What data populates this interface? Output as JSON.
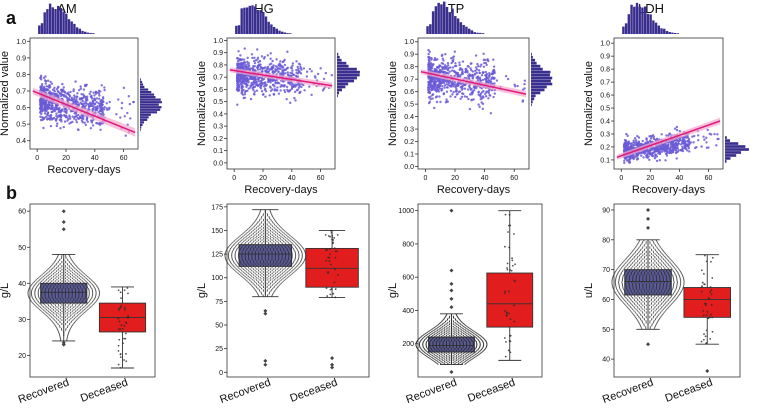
{
  "panel_labels": {
    "a": "a",
    "b": "b"
  },
  "colors": {
    "scatter": "#6b5bd6",
    "hist": "#3a2f8f",
    "reg_line": "#e0197a",
    "reg_band": "#f4a6cc",
    "box_recovered": "#5a5a96",
    "box_deceased": "#e11d1d",
    "swarm": "#2a2a2a"
  },
  "chart_data": [
    {
      "type": "scatter",
      "title": "AM",
      "xlabel": "Recovery-days",
      "ylabel": "Normalized value",
      "xlim": [
        -5,
        70
      ],
      "ylim": [
        0.35,
        1.02
      ],
      "xticks": [
        0,
        20,
        40,
        60
      ],
      "yticks": [
        0.4,
        0.5,
        0.6,
        0.7,
        0.8,
        0.9,
        1.0
      ],
      "cluster": {
        "x_mean": 12,
        "y_mean": 0.62,
        "y_sd": 0.06,
        "n": 1000
      },
      "regression": {
        "x": [
          -3,
          68
        ],
        "y": [
          0.7,
          0.45
        ]
      },
      "marginal_y_mean": 0.62
    },
    {
      "type": "scatter",
      "title": "HG",
      "xlabel": "Recovery-days",
      "ylabel": "Normalized value",
      "xlim": [
        -5,
        70
      ],
      "ylim": [
        -0.05,
        1.02
      ],
      "xticks": [
        0,
        20,
        40,
        60
      ],
      "yticks": [
        0.0,
        0.1,
        0.2,
        0.3,
        0.4,
        0.5,
        0.6,
        0.7,
        0.8,
        0.9,
        1.0
      ],
      "cluster": {
        "x_mean": 12,
        "y_mean": 0.71,
        "y_sd": 0.07,
        "n": 1000
      },
      "regression": {
        "x": [
          -3,
          68
        ],
        "y": [
          0.76,
          0.63
        ]
      },
      "marginal_y_mean": 0.72
    },
    {
      "type": "scatter",
      "title": "TP",
      "xlabel": "Recovery-days",
      "ylabel": "Normalized value",
      "xlim": [
        -5,
        70
      ],
      "ylim": [
        -0.02,
        1.03
      ],
      "xticks": [
        0,
        20,
        40,
        60
      ],
      "yticks": [
        0.0,
        0.1,
        0.2,
        0.3,
        0.4,
        0.5,
        0.6,
        0.7,
        0.8,
        0.9,
        1.0
      ],
      "cluster": {
        "x_mean": 12,
        "y_mean": 0.7,
        "y_sd": 0.08,
        "n": 1000
      },
      "regression": {
        "x": [
          -3,
          68
        ],
        "y": [
          0.76,
          0.58
        ]
      },
      "marginal_y_mean": 0.7
    },
    {
      "type": "scatter",
      "title": "LDH",
      "xlabel": "Recovery-days",
      "ylabel": "Normalized value",
      "xlim": [
        -5,
        70
      ],
      "ylim": [
        0.03,
        1.04
      ],
      "xticks": [
        0,
        20,
        40,
        60
      ],
      "yticks": [
        0.1,
        0.2,
        0.3,
        0.4,
        0.5,
        0.6,
        0.7,
        0.8,
        0.9,
        1.0
      ],
      "cluster": {
        "x_mean": 12,
        "y_mean": 0.18,
        "y_sd": 0.04,
        "n": 1000
      },
      "regression": {
        "x": [
          -3,
          68
        ],
        "y": [
          0.12,
          0.4
        ]
      },
      "marginal_y_mean": 0.18
    },
    {
      "type": "box",
      "ylabel": "g/L",
      "ylim": [
        14,
        62
      ],
      "yticks": [
        20,
        30,
        40,
        50,
        60
      ],
      "categories": [
        "Recovered",
        "Deceased"
      ],
      "series": [
        {
          "name": "Recovered",
          "q1": 34.5,
          "median": 37.5,
          "q3": 40.0,
          "whisker_low": 24,
          "whisker_high": 48
        },
        {
          "name": "Deceased",
          "q1": 26.5,
          "median": 30.5,
          "q3": 34.5,
          "whisker_low": 16.5,
          "whisker_high": 39
        }
      ],
      "outliers": {
        "Recovered": [
          55,
          57,
          60,
          23.5,
          23
        ],
        "Deceased": []
      }
    },
    {
      "type": "box",
      "ylabel": "g/L",
      "ylim": [
        -5,
        178
      ],
      "yticks": [
        0,
        25,
        50,
        75,
        100,
        125,
        150,
        175
      ],
      "categories": [
        "Recovered",
        "Deceased"
      ],
      "series": [
        {
          "name": "Recovered",
          "q1": 112,
          "median": 125,
          "q3": 135,
          "whisker_low": 80,
          "whisker_high": 172
        },
        {
          "name": "Deceased",
          "q1": 90,
          "median": 110,
          "q3": 131,
          "whisker_low": 79,
          "whisker_high": 150
        }
      ],
      "outliers": {
        "Recovered": [
          62,
          65,
          8,
          12
        ],
        "Deceased": [
          5,
          8,
          15
        ]
      }
    },
    {
      "type": "box",
      "ylabel": "g/L",
      "ylim": [
        0,
        1040
      ],
      "yticks": [
        200,
        400,
        600,
        800,
        1000
      ],
      "categories": [
        "Recovered",
        "Deceased"
      ],
      "series": [
        {
          "name": "Recovered",
          "q1": 150,
          "median": 190,
          "q3": 240,
          "whisker_low": 75,
          "whisker_high": 380
        },
        {
          "name": "Deceased",
          "q1": 300,
          "median": 440,
          "q3": 625,
          "whisker_low": 100,
          "whisker_high": 1000
        }
      ],
      "outliers": {
        "Recovered": [
          420,
          470,
          520,
          560,
          640,
          1000,
          30
        ],
        "Deceased": []
      }
    },
    {
      "type": "box",
      "ylabel": "u/L",
      "ylim": [
        34,
        92
      ],
      "yticks": [
        40,
        50,
        60,
        70,
        80,
        90
      ],
      "categories": [
        "Recovered",
        "Deceased"
      ],
      "series": [
        {
          "name": "Recovered",
          "q1": 61.5,
          "median": 66,
          "q3": 70,
          "whisker_low": 50,
          "whisker_high": 80
        },
        {
          "name": "Deceased",
          "q1": 54,
          "median": 60,
          "q3": 64,
          "whisker_low": 45,
          "whisker_high": 75
        }
      ],
      "outliers": {
        "Recovered": [
          84,
          87,
          90,
          45
        ],
        "Deceased": [
          36
        ]
      }
    }
  ]
}
